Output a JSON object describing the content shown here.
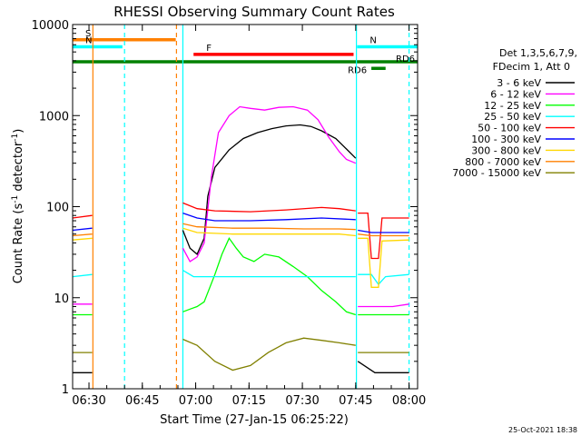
{
  "chart_data": {
    "type": "line",
    "title": "RHESSI Observing Summary Count Rates",
    "xlabel": "Start Time (27-Jan-15 06:25:22)",
    "ylabel_main": "Count Rate (s",
    "ylabel_sup1": "-1",
    "ylabel_mid": " detector",
    "ylabel_sup2": "-1",
    "ylabel_end": ")",
    "x_units": "minutes after 06:25:22",
    "xlim": [
      0,
      97
    ],
    "ylim": [
      1,
      10000
    ],
    "y_scale": "log",
    "x_ticks": [
      {
        "t": 4.6,
        "label": "06:30"
      },
      {
        "t": 19.6,
        "label": "06:45"
      },
      {
        "t": 34.6,
        "label": "07:00"
      },
      {
        "t": 49.6,
        "label": "07:15"
      },
      {
        "t": 64.6,
        "label": "07:30"
      },
      {
        "t": 79.6,
        "label": "07:45"
      },
      {
        "t": 94.6,
        "label": "08:00"
      }
    ],
    "y_ticks": [
      {
        "v": 1,
        "label": "1"
      },
      {
        "v": 10,
        "label": "10"
      },
      {
        "v": 100,
        "label": "100"
      },
      {
        "v": 1000,
        "label": "1000"
      },
      {
        "v": 10000,
        "label": "10000"
      }
    ],
    "legend_header": [
      "Det 1,3,5,6,7,9,",
      "FDecim 1, Att 0"
    ],
    "legend_position": "right",
    "grid": false,
    "timestamp": "25-Oct-2021 18:38",
    "state_bars": [
      {
        "label": "S",
        "x0": 0,
        "x1": 29,
        "y": 6800,
        "color": "#ff8000"
      },
      {
        "label": "N",
        "x0": 0,
        "x1": 14,
        "y": 5700,
        "color": "#00ffff"
      },
      {
        "label": "N",
        "x0": 80,
        "x1": 97,
        "y": 5700,
        "color": "#00ffff"
      },
      {
        "label": "F",
        "x0": 34,
        "x1": 79,
        "y": 4700,
        "color": "#ff0000"
      },
      {
        "label": "RD6",
        "x0": 0,
        "x1": 97,
        "y": 3900,
        "color": "#008000"
      },
      {
        "label": "RD6",
        "x0": 84,
        "x1": 88,
        "y": 3300,
        "color": "#008000"
      }
    ],
    "vertical_markers": [
      {
        "t": 5.7,
        "color": "#ff8000",
        "style": "solid"
      },
      {
        "t": 14.6,
        "color": "#00ffff",
        "style": "dashed"
      },
      {
        "t": 29.2,
        "color": "#ff8000",
        "style": "dashed"
      },
      {
        "t": 31.0,
        "color": "#00ffff",
        "style": "solid"
      },
      {
        "t": 79.8,
        "color": "#00ffff",
        "style": "solid"
      },
      {
        "t": 94.6,
        "color": "#00ffff",
        "style": "dashed"
      }
    ],
    "series": [
      {
        "name": "3 - 6 keV",
        "color": "#000000",
        "segments": [
          [
            [
              0,
              1.5
            ],
            [
              5.5,
              1.5
            ]
          ],
          [
            [
              31,
              55
            ],
            [
              33,
              35
            ],
            [
              35,
              30
            ],
            [
              37,
              45
            ],
            [
              38,
              130
            ],
            [
              40,
              270
            ],
            [
              44,
              420
            ],
            [
              48,
              560
            ],
            [
              52,
              650
            ],
            [
              56,
              720
            ],
            [
              60,
              770
            ],
            [
              64,
              790
            ],
            [
              67,
              760
            ],
            [
              70,
              680
            ],
            [
              74,
              560
            ],
            [
              77,
              430
            ],
            [
              79.6,
              340
            ]
          ],
          [
            [
              80.2,
              2.0
            ],
            [
              85,
              1.5
            ],
            [
              90,
              1.5
            ],
            [
              94.6,
              1.5
            ]
          ]
        ]
      },
      {
        "name": "6 - 12 keV",
        "color": "#ff00ff",
        "segments": [
          [
            [
              0,
              8.5
            ],
            [
              5.5,
              8.5
            ]
          ],
          [
            [
              31,
              35
            ],
            [
              33,
              25
            ],
            [
              35,
              28
            ],
            [
              37,
              40
            ],
            [
              39,
              210
            ],
            [
              41,
              650
            ],
            [
              44,
              1000
            ],
            [
              47,
              1250
            ],
            [
              50,
              1200
            ],
            [
              54,
              1150
            ],
            [
              58,
              1230
            ],
            [
              62,
              1250
            ],
            [
              66,
              1150
            ],
            [
              69,
              900
            ],
            [
              72,
              580
            ],
            [
              75,
              400
            ],
            [
              77,
              330
            ],
            [
              79.6,
              300
            ]
          ],
          [
            [
              80.2,
              8
            ],
            [
              85,
              8
            ],
            [
              90,
              8
            ],
            [
              94.6,
              8.5
            ]
          ]
        ]
      },
      {
        "name": "12 - 25 keV",
        "color": "#00ff00",
        "segments": [
          [
            [
              0,
              6.5
            ],
            [
              5.5,
              6.5
            ]
          ],
          [
            [
              31,
              7
            ],
            [
              33,
              7.5
            ],
            [
              35,
              8
            ],
            [
              37,
              9
            ],
            [
              40,
              18
            ],
            [
              42,
              30
            ],
            [
              44,
              45
            ],
            [
              46,
              35
            ],
            [
              48,
              28
            ],
            [
              51,
              25
            ],
            [
              54,
              30
            ],
            [
              58,
              28
            ],
            [
              62,
              22
            ],
            [
              66,
              17
            ],
            [
              70,
              12
            ],
            [
              74,
              9
            ],
            [
              77,
              7
            ],
            [
              79.6,
              6.5
            ]
          ],
          [
            [
              80.2,
              6.5
            ],
            [
              85,
              6.5
            ],
            [
              90,
              6.5
            ],
            [
              94.6,
              6.5
            ]
          ]
        ]
      },
      {
        "name": "25 - 50 keV",
        "color": "#00ffff",
        "segments": [
          [
            [
              0,
              17
            ],
            [
              5.5,
              18
            ]
          ],
          [
            [
              31,
              20
            ],
            [
              34,
              17
            ],
            [
              38,
              17
            ],
            [
              45,
              17
            ],
            [
              55,
              17
            ],
            [
              65,
              17
            ],
            [
              75,
              17
            ],
            [
              79.6,
              17
            ]
          ],
          [
            [
              80.2,
              18
            ],
            [
              84,
              18
            ],
            [
              86,
              14
            ],
            [
              88,
              17
            ],
            [
              94.6,
              18
            ]
          ]
        ]
      },
      {
        "name": "50 - 100 keV",
        "color": "#ff0000",
        "segments": [
          [
            [
              0,
              75
            ],
            [
              5.5,
              80
            ]
          ],
          [
            [
              31,
              110
            ],
            [
              35,
              95
            ],
            [
              40,
              90
            ],
            [
              50,
              88
            ],
            [
              60,
              92
            ],
            [
              70,
              98
            ],
            [
              75,
              95
            ],
            [
              79.6,
              90
            ]
          ],
          [
            [
              80.2,
              85
            ],
            [
              83,
              85
            ],
            [
              84,
              27
            ],
            [
              86,
              27
            ],
            [
              87,
              75
            ],
            [
              94.6,
              75
            ]
          ]
        ]
      },
      {
        "name": "100 - 300 keV",
        "color": "#0000ff",
        "segments": [
          [
            [
              0,
              55
            ],
            [
              5.5,
              58
            ]
          ],
          [
            [
              31,
              85
            ],
            [
              35,
              75
            ],
            [
              40,
              70
            ],
            [
              50,
              70
            ],
            [
              60,
              72
            ],
            [
              70,
              75
            ],
            [
              79.6,
              72
            ]
          ],
          [
            [
              80.2,
              55
            ],
            [
              84,
              52
            ],
            [
              86,
              52
            ],
            [
              94.6,
              52
            ]
          ]
        ]
      },
      {
        "name": "300 - 800 keV",
        "color": "#ffd700",
        "segments": [
          [
            [
              0,
              43
            ],
            [
              5.5,
              45
            ]
          ],
          [
            [
              31,
              58
            ],
            [
              35,
              52
            ],
            [
              45,
              50
            ],
            [
              55,
              50
            ],
            [
              65,
              50
            ],
            [
              75,
              50
            ],
            [
              79.6,
              48
            ]
          ],
          [
            [
              80.2,
              45
            ],
            [
              83,
              45
            ],
            [
              84,
              13
            ],
            [
              86,
              13
            ],
            [
              87,
              42
            ],
            [
              94.6,
              43
            ]
          ]
        ]
      },
      {
        "name": "800 - 7000 keV",
        "color": "#ff8000",
        "segments": [
          [
            [
              0,
              48
            ],
            [
              5.5,
              50
            ]
          ],
          [
            [
              31,
              65
            ],
            [
              35,
              60
            ],
            [
              45,
              58
            ],
            [
              55,
              58
            ],
            [
              65,
              57
            ],
            [
              75,
              57
            ],
            [
              79.6,
              56
            ]
          ],
          [
            [
              80.2,
              50
            ],
            [
              84,
              48
            ],
            [
              86,
              48
            ],
            [
              94.6,
              48
            ]
          ]
        ]
      },
      {
        "name": "7000 - 15000 keV",
        "color": "#808000",
        "segments": [
          [
            [
              0,
              2.5
            ],
            [
              5.5,
              2.5
            ]
          ],
          [
            [
              31,
              3.5
            ],
            [
              35,
              3
            ],
            [
              40,
              2
            ],
            [
              45,
              1.6
            ],
            [
              50,
              1.8
            ],
            [
              55,
              2.5
            ],
            [
              60,
              3.2
            ],
            [
              65,
              3.6
            ],
            [
              70,
              3.4
            ],
            [
              75,
              3.2
            ],
            [
              79.6,
              3
            ]
          ],
          [
            [
              80.2,
              2.5
            ],
            [
              85,
              2.5
            ],
            [
              90,
              2.5
            ],
            [
              94.6,
              2.5
            ]
          ]
        ]
      }
    ]
  }
}
